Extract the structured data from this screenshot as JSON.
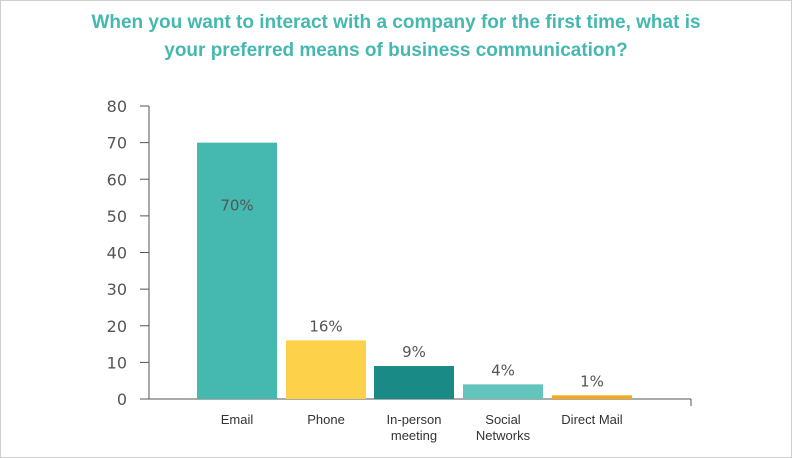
{
  "chart_data": {
    "type": "bar",
    "title_lines": [
      "When you want to interact with a company for the first time, what is",
      "your preferred means of business communication?"
    ],
    "categories": [
      [
        "Email"
      ],
      [
        "Phone"
      ],
      [
        "In-person",
        "meeting"
      ],
      [
        "Social",
        "Networks"
      ],
      [
        "Direct Mail"
      ]
    ],
    "values": [
      70,
      16,
      9,
      4,
      1
    ],
    "data_labels": [
      "70%",
      "16%",
      "9%",
      "4%",
      "1%"
    ],
    "label_position": [
      "inside",
      "above",
      "above",
      "above",
      "above"
    ],
    "colors": [
      "#45b8b0",
      "#fdd14a",
      "#1a8a86",
      "#63c4bd",
      "#f2a71d"
    ],
    "ylim": [
      0,
      80
    ],
    "yticks": [
      0,
      10,
      20,
      30,
      40,
      50,
      60,
      70,
      80
    ],
    "xlabel": "",
    "ylabel": "",
    "grid": false,
    "legend": "none"
  },
  "colors": {
    "title": "#45b8b0",
    "axis": "#555555"
  }
}
